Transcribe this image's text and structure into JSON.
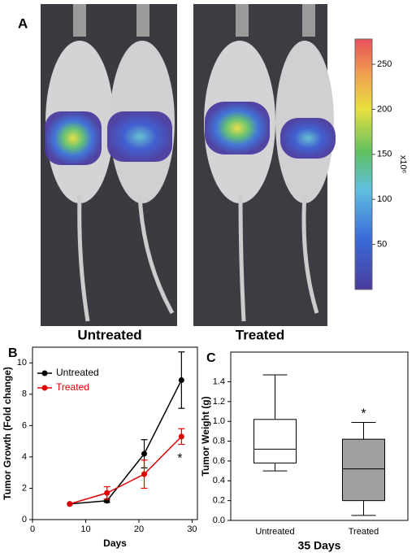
{
  "imaging": {
    "panel": "A",
    "groups": [
      "Untreated",
      "Treated"
    ],
    "colorbar": {
      "ylim": [
        0,
        278
      ],
      "yticks": [
        50,
        100,
        150,
        200,
        250
      ],
      "label": "x10⁶"
    }
  },
  "chart_data": [
    {
      "type": "line",
      "panel": "B",
      "xlabel": "Days",
      "ylabel": "Tumor Growth (Fold change)",
      "x": [
        7,
        14,
        21,
        28
      ],
      "xlim": [
        0,
        31
      ],
      "xticks": [
        0,
        10,
        20,
        30
      ],
      "ylim": [
        0,
        11
      ],
      "yticks": [
        0,
        2,
        4,
        6,
        8,
        10
      ],
      "legend": "upper left",
      "series": [
        {
          "name": "Untreated",
          "color": "#000000",
          "values": [
            1,
            1.2,
            4.2,
            8.9
          ],
          "errors": [
            0,
            0.1,
            0.9,
            1.8
          ]
        },
        {
          "name": "Treated",
          "color": "#e00000",
          "values": [
            1,
            1.7,
            2.9,
            5.3
          ],
          "errors": [
            0,
            0.4,
            0.9,
            0.5
          ]
        }
      ],
      "annotation": "*"
    },
    {
      "type": "box",
      "panel": "C",
      "xlabel": "35 Days",
      "ylabel": "Tumor  Weight  (g)",
      "categories": [
        "Untreated",
        "Treated"
      ],
      "colors": [
        "#ffffff",
        "#a0a0a0"
      ],
      "boxes": [
        {
          "min": 0.5,
          "q1": 0.58,
          "median": 0.72,
          "q3": 1.02,
          "max": 1.47
        },
        {
          "min": 0.05,
          "q1": 0.2,
          "median": 0.52,
          "q3": 0.82,
          "max": 0.99
        }
      ],
      "ylim": [
        0,
        1.7
      ],
      "yticks": [
        {
          "value": 0,
          "label": "0.0"
        },
        0.2,
        0.4,
        0.6,
        0.8,
        {
          "value": 1,
          "label": "1.0"
        },
        1.2,
        1.4
      ],
      "annotation": "*"
    }
  ]
}
